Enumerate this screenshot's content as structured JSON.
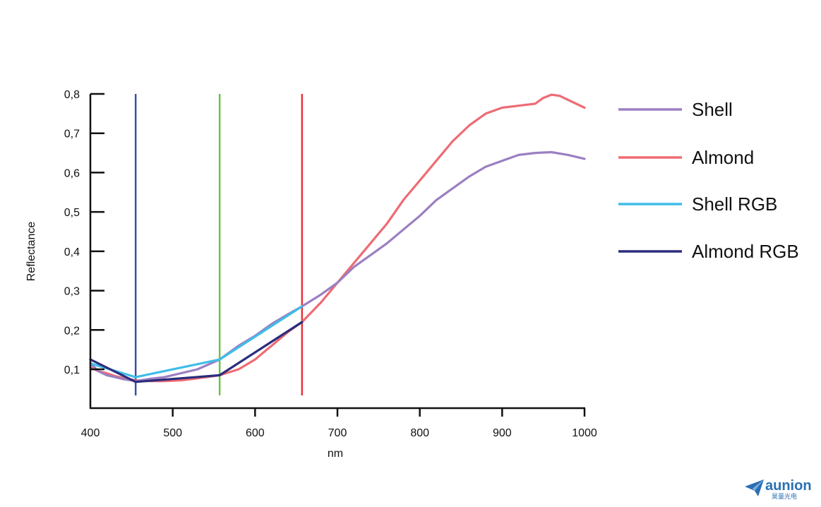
{
  "chart_data": {
    "type": "line",
    "xlabel": "nm",
    "ylabel": "Reflectance",
    "xlim": [
      400,
      1000
    ],
    "ylim": [
      0.0,
      0.8
    ],
    "x_ticks": [
      "400",
      "500",
      "600",
      "700",
      "800",
      "900",
      "1000"
    ],
    "y_ticks": [
      "0,1",
      "0,2",
      "0,3",
      "0,4",
      "0,5",
      "0,6",
      "0,7",
      "0,8"
    ],
    "grid": false,
    "legend_position": "right",
    "vertical_lines": [
      {
        "x": 455,
        "color": "#3b4fa8"
      },
      {
        "x": 557,
        "color": "#6cc24a"
      },
      {
        "x": 657,
        "color": "#e8343c"
      }
    ],
    "series": [
      {
        "name": "Shell",
        "color": "#9b7fc2",
        "x": [
          400,
          410,
          420,
          430,
          440,
          455,
          470,
          490,
          510,
          530,
          557,
          580,
          600,
          620,
          640,
          657,
          680,
          700,
          720,
          740,
          760,
          780,
          800,
          820,
          840,
          860,
          880,
          900,
          920,
          940,
          960,
          980,
          1000
        ],
        "y": [
          0.115,
          0.095,
          0.085,
          0.08,
          0.075,
          0.07,
          0.075,
          0.08,
          0.09,
          0.1,
          0.125,
          0.16,
          0.185,
          0.215,
          0.24,
          0.26,
          0.29,
          0.32,
          0.36,
          0.39,
          0.42,
          0.455,
          0.49,
          0.53,
          0.56,
          0.59,
          0.615,
          0.63,
          0.645,
          0.65,
          0.652,
          0.645,
          0.635
        ]
      },
      {
        "name": "Almond",
        "color": "#ee6b73",
        "x": [
          400,
          410,
          420,
          430,
          440,
          455,
          470,
          490,
          510,
          530,
          557,
          580,
          600,
          620,
          640,
          657,
          680,
          700,
          720,
          740,
          760,
          780,
          800,
          820,
          840,
          860,
          880,
          900,
          920,
          940,
          950,
          960,
          970,
          980,
          1000
        ],
        "y": [
          0.105,
          0.095,
          0.09,
          0.083,
          0.078,
          0.072,
          0.07,
          0.07,
          0.072,
          0.077,
          0.085,
          0.1,
          0.125,
          0.16,
          0.195,
          0.22,
          0.27,
          0.32,
          0.37,
          0.42,
          0.47,
          0.53,
          0.58,
          0.63,
          0.68,
          0.72,
          0.75,
          0.765,
          0.77,
          0.775,
          0.79,
          0.798,
          0.795,
          0.785,
          0.765
        ]
      },
      {
        "name": "Shell RGB",
        "color": "#3fbde8",
        "x": [
          400,
          455,
          557,
          657
        ],
        "y": [
          0.115,
          0.08,
          0.125,
          0.26
        ]
      },
      {
        "name": "Almond RGB",
        "color": "#2a2d7c",
        "x": [
          400,
          455,
          557,
          657
        ],
        "y": [
          0.125,
          0.068,
          0.085,
          0.22
        ]
      }
    ]
  },
  "logo": {
    "name": "aunion",
    "subtitle": "昊量光电"
  }
}
